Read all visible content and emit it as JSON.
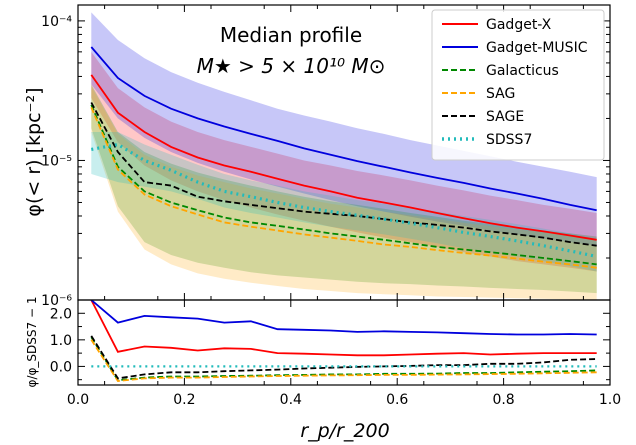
{
  "chart_data": [
    {
      "type": "line",
      "panel": "top",
      "title_line1": "Median profile",
      "title_line2": "M★ > 5 × 10¹⁰ M⊙",
      "xlabel": "",
      "ylabel": "φ(< r) [kpc⁻²]",
      "yscale": "log",
      "xlim": [
        0.0,
        1.0
      ],
      "ylim": [
        1e-06,
        0.00013
      ],
      "yticks": [
        1e-06,
        1e-05,
        0.0001
      ],
      "ytick_labels": [
        "10⁻⁶",
        "10⁻⁵",
        "10⁻⁴"
      ],
      "legend_position": "top-right",
      "legend": [
        "Gadget-X",
        "Gadget-MUSIC",
        "Galacticus",
        "SAG",
        "SAGE",
        "SDSS7"
      ],
      "x": [
        0.025,
        0.075,
        0.125,
        0.175,
        0.225,
        0.275,
        0.325,
        0.375,
        0.425,
        0.475,
        0.525,
        0.575,
        0.625,
        0.675,
        0.725,
        0.775,
        0.825,
        0.875,
        0.925,
        0.975
      ],
      "series": [
        {
          "name": "Gadget-X",
          "color": "#ff0000",
          "style": "solid",
          "values": [
            4.1e-05,
            2.2e-05,
            1.6e-05,
            1.25e-05,
            1.05e-05,
            9.2e-06,
            8.3e-06,
            7.4e-06,
            6.6e-06,
            6e-06,
            5.4e-06,
            5e-06,
            4.6e-06,
            4.2e-06,
            3.85e-06,
            3.55e-06,
            3.3e-06,
            3.1e-06,
            2.9e-06,
            2.7e-06
          ],
          "band_low": [
            2.8e-05,
            1.35e-05,
            9.2e-06,
            7.2e-06,
            6e-06,
            5.2e-06,
            4.6e-06,
            4.1e-06,
            3.7e-06,
            3.35e-06,
            3.05e-06,
            2.8e-06,
            2.6e-06,
            2.4e-06,
            2.2e-06,
            2.05e-06,
            1.9e-06,
            1.8e-06,
            1.7e-06,
            1.6e-06
          ],
          "band_high": [
            6e-05,
            3.3e-05,
            2.4e-05,
            1.9e-05,
            1.6e-05,
            1.4e-05,
            1.25e-05,
            1.12e-05,
            1e-05,
            9.2e-06,
            8.4e-06,
            7.8e-06,
            7.2e-06,
            6.6e-06,
            6.1e-06,
            5.6e-06,
            5.2e-06,
            4.8e-06,
            4.5e-06,
            4.2e-06
          ]
        },
        {
          "name": "Gadget-MUSIC",
          "color": "#0000dd",
          "style": "solid",
          "values": [
            6.5e-05,
            3.9e-05,
            2.9e-05,
            2.35e-05,
            2e-05,
            1.75e-05,
            1.55e-05,
            1.38e-05,
            1.22e-05,
            1.1e-05,
            9.9e-06,
            9e-06,
            8.2e-06,
            7.5e-06,
            6.9e-06,
            6.3e-06,
            5.8e-06,
            5.3e-06,
            4.8e-06,
            4.4e-06
          ],
          "band_low": [
            3.5e-05,
            2e-05,
            1.45e-05,
            1.15e-05,
            9.6e-06,
            8.3e-06,
            7.3e-06,
            6.5e-06,
            5.8e-06,
            5.2e-06,
            4.7e-06,
            4.3e-06,
            3.95e-06,
            3.65e-06,
            3.4e-06,
            3.15e-06,
            2.95e-06,
            2.75e-06,
            2.6e-06,
            2.45e-06
          ],
          "band_high": [
            0.000115,
            7.3e-05,
            5.4e-05,
            4.3e-05,
            3.6e-05,
            3.1e-05,
            2.7e-05,
            2.35e-05,
            2.1e-05,
            1.9e-05,
            1.7e-05,
            1.55e-05,
            1.4e-05,
            1.28e-05,
            1.17e-05,
            1.07e-05,
            9.8e-06,
            9e-06,
            8.3e-06,
            7.6e-06
          ]
        },
        {
          "name": "Galacticus",
          "color": "#008800",
          "style": "dashed",
          "values": [
            2.5e-05,
            9e-06,
            6e-06,
            5e-06,
            4.4e-06,
            3.9e-06,
            3.6e-06,
            3.4e-06,
            3.2e-06,
            3e-06,
            2.85e-06,
            2.7e-06,
            2.55e-06,
            2.4e-06,
            2.3e-06,
            2.2e-06,
            2.1e-06,
            2e-06,
            1.9e-06,
            1.8e-06
          ],
          "band_low": [
            1.7e-05,
            4.7e-06,
            2.6e-06,
            2.1e-06,
            1.85e-06,
            1.7e-06,
            1.58e-06,
            1.5e-06,
            1.45e-06,
            1.4e-06,
            1.35e-06,
            1.32e-06,
            1.3e-06,
            1.27e-06,
            1.25e-06,
            1.22e-06,
            1.2e-06,
            1.18e-06,
            1.15e-06,
            1.12e-06
          ],
          "band_high": [
            3.5e-05,
            1.6e-05,
            1.15e-05,
            9.5e-06,
            8.2e-06,
            7.3e-06,
            6.6e-06,
            6e-06,
            5.5e-06,
            5.1e-06,
            4.8e-06,
            4.5e-06,
            4.2e-06,
            3.95e-06,
            3.7e-06,
            3.5e-06,
            3.3e-06,
            3.15e-06,
            3e-06,
            2.85e-06
          ]
        },
        {
          "name": "SAG",
          "color": "#ffa500",
          "style": "dashed",
          "values": [
            2.4e-05,
            8.6e-06,
            5.7e-06,
            4.7e-06,
            4.1e-06,
            3.6e-06,
            3.35e-06,
            3.15e-06,
            2.95e-06,
            2.8e-06,
            2.65e-06,
            2.5e-06,
            2.4e-06,
            2.28e-06,
            2.17e-06,
            2.08e-06,
            1.98e-06,
            1.88e-06,
            1.8e-06,
            1.7e-06
          ],
          "band_low": [
            1.6e-05,
            4.3e-06,
            2.3e-06,
            1.8e-06,
            1.55e-06,
            1.42e-06,
            1.33e-06,
            1.26e-06,
            1.2e-06,
            1.16e-06,
            1.12e-06,
            1.1e-06,
            1.08e-06,
            1.06e-06,
            1.05e-06,
            1.04e-06,
            1.03e-06,
            1.02e-06,
            1.01e-06,
            1e-06
          ],
          "band_high": [
            3.4e-05,
            1.55e-05,
            1.1e-05,
            9e-06,
            7.8e-06,
            7e-06,
            6.3e-06,
            5.8e-06,
            5.3e-06,
            4.9e-06,
            4.6e-06,
            4.3e-06,
            4.05e-06,
            3.8e-06,
            3.58e-06,
            3.38e-06,
            3.2e-06,
            3.05e-06,
            2.9e-06,
            2.75e-06
          ]
        },
        {
          "name": "SAGE",
          "color": "#000000",
          "style": "dashed",
          "values": [
            2.6e-05,
            1.15e-05,
            7e-06,
            6.6e-06,
            5.5e-06,
            5.1e-06,
            4.8e-06,
            4.55e-06,
            4.3e-06,
            4.15e-06,
            4e-06,
            3.8e-06,
            3.6e-06,
            3.45e-06,
            3.3e-06,
            3.1e-06,
            2.95e-06,
            2.8e-06,
            2.6e-06,
            2.45e-06
          ]
        },
        {
          "name": "SDSS7",
          "color": "#22bbbb",
          "style": "dotted",
          "values": [
            1.2e-05,
            1.3e-05,
            1e-05,
            8.5e-06,
            7e-06,
            6e-06,
            5.5e-06,
            5e-06,
            4.6e-06,
            4.3e-06,
            4.05e-06,
            3.8e-06,
            3.55e-06,
            3.3e-06,
            3.05e-06,
            2.85e-06,
            2.65e-06,
            2.45e-06,
            2.25e-06,
            2.05e-06
          ],
          "band_low": [
            8e-06,
            7e-06,
            6.5e-06,
            6e-06,
            5.3e-06,
            4.6e-06,
            4.2e-06,
            3.9e-06,
            3.6e-06,
            3.35e-06,
            3.15e-06,
            2.95e-06,
            2.75e-06,
            2.55e-06,
            2.35e-06,
            2.2e-06,
            2.05e-06,
            1.9e-06,
            1.75e-06,
            1.6e-06
          ],
          "band_high": [
            1.6e-05,
            1.6e-05,
            1.3e-05,
            1.1e-05,
            9.3e-06,
            8e-06,
            7.2e-06,
            6.6e-06,
            6e-06,
            5.6e-06,
            5.2e-06,
            4.9e-06,
            4.6e-06,
            4.3e-06,
            4e-06,
            3.75e-06,
            3.5e-06,
            3.25e-06,
            3e-06,
            2.75e-06
          ]
        }
      ]
    },
    {
      "type": "line",
      "panel": "bottom",
      "xlabel": "r_p/r_200",
      "ylabel": "φ/φ_SDSS7 − 1",
      "xlim": [
        0.0,
        1.0
      ],
      "ylim": [
        -0.7,
        2.5
      ],
      "xticks": [
        0.0,
        0.2,
        0.4,
        0.6,
        0.8,
        1.0
      ],
      "xtick_labels": [
        "0.0",
        "0.2",
        "0.4",
        "0.6",
        "0.8",
        "1.0"
      ],
      "yticks": [
        0.0,
        1.0,
        2.0
      ],
      "ytick_labels": [
        "0.0",
        "1.0",
        "2.0"
      ],
      "x": [
        0.025,
        0.075,
        0.125,
        0.175,
        0.225,
        0.275,
        0.325,
        0.375,
        0.425,
        0.475,
        0.525,
        0.575,
        0.625,
        0.675,
        0.725,
        0.775,
        0.825,
        0.875,
        0.925,
        0.975
      ],
      "series": [
        {
          "name": "Gadget-X",
          "color": "#ff0000",
          "style": "solid",
          "values": [
            2.5,
            0.55,
            0.75,
            0.7,
            0.6,
            0.68,
            0.66,
            0.5,
            0.48,
            0.45,
            0.42,
            0.42,
            0.45,
            0.48,
            0.5,
            0.45,
            0.48,
            0.5,
            0.5,
            0.5
          ]
        },
        {
          "name": "Gadget-MUSIC",
          "color": "#0000dd",
          "style": "solid",
          "values": [
            2.5,
            1.65,
            1.9,
            1.85,
            1.8,
            1.65,
            1.7,
            1.4,
            1.38,
            1.35,
            1.3,
            1.32,
            1.3,
            1.28,
            1.25,
            1.22,
            1.2,
            1.2,
            1.22,
            1.2
          ]
        },
        {
          "name": "Galacticus",
          "color": "#008800",
          "style": "dashed",
          "values": [
            1.1,
            -0.52,
            -0.42,
            -0.38,
            -0.38,
            -0.36,
            -0.35,
            -0.33,
            -0.32,
            -0.3,
            -0.3,
            -0.28,
            -0.28,
            -0.27,
            -0.25,
            -0.25,
            -0.22,
            -0.2,
            -0.18,
            -0.15
          ]
        },
        {
          "name": "SAG",
          "color": "#ffa500",
          "style": "dashed",
          "values": [
            1.0,
            -0.55,
            -0.45,
            -0.42,
            -0.42,
            -0.4,
            -0.38,
            -0.36,
            -0.35,
            -0.34,
            -0.33,
            -0.32,
            -0.32,
            -0.31,
            -0.3,
            -0.29,
            -0.28,
            -0.26,
            -0.24,
            -0.22
          ]
        },
        {
          "name": "SAGE",
          "color": "#000000",
          "style": "dashed",
          "values": [
            1.15,
            -0.45,
            -0.3,
            -0.22,
            -0.22,
            -0.18,
            -0.15,
            -0.12,
            -0.08,
            -0.05,
            -0.02,
            0.0,
            0.02,
            0.05,
            0.05,
            0.1,
            0.1,
            0.15,
            0.25,
            0.28
          ]
        },
        {
          "name": "SDSS7",
          "color": "#22bbbb",
          "style": "dotted",
          "values": [
            0,
            0,
            0,
            0,
            0,
            0,
            0,
            0,
            0,
            0,
            0,
            0,
            0,
            0,
            0,
            0,
            0,
            0,
            0,
            0
          ]
        }
      ]
    }
  ]
}
